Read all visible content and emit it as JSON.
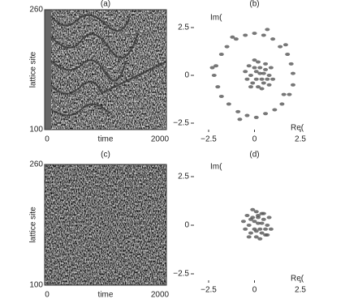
{
  "chart_data": [
    {
      "type": "heatmap",
      "title": "(a)",
      "xlabel": "time",
      "ylabel": "lattice site",
      "xlim": [
        0,
        2000
      ],
      "ylim": [
        100,
        260
      ],
      "xticks": [
        0,
        2000
      ],
      "yticks": [
        100,
        260
      ]
    },
    {
      "type": "scatter",
      "title": "(b)",
      "xlabel": "Re(",
      "ylabel": "Im(",
      "color": "#555",
      "xlim": [
        -2.5,
        2.5
      ],
      "ylim": [
        -2.5,
        2.5
      ],
      "xticks": [
        {
          "value": -2.5,
          "label": "−2.5"
        },
        0,
        2.5
      ],
      "yticks": [
        2.5,
        0,
        {
          "value": -2.5,
          "label": "−2.5"
        }
      ],
      "x": [
        2.1,
        2.0,
        1.8,
        1.4,
        1.0,
        0.5,
        0.0,
        -0.5,
        -1.0,
        -1.5,
        -1.8,
        -2.1,
        -2.2,
        -2.0,
        -1.8,
        -1.4,
        -0.9,
        -0.4,
        0.1,
        0.6,
        1.1,
        1.5,
        1.9,
        2.1,
        0.7,
        -1.2,
        1.6,
        -2.3,
        1.7,
        -0.8,
        0.3,
        0.6,
        0.0,
        -0.2,
        0.5,
        0.8,
        0.2,
        -0.1,
        0.4,
        0.9,
        -0.3,
        0.1,
        0.7,
        0.3,
        -0.4,
        0.6,
        0.2,
        1.0,
        0.0,
        -0.2,
        0.5,
        0.4,
        0.1,
        0.8,
        -0.5
      ],
      "y": [
        0.1,
        0.6,
        1.1,
        1.5,
        1.9,
        2.1,
        2.2,
        2.1,
        1.9,
        1.5,
        1.1,
        0.5,
        0.0,
        -0.6,
        -1.1,
        -1.5,
        -1.9,
        -2.1,
        -2.2,
        -2.0,
        -1.8,
        -1.5,
        -1.0,
        -0.5,
        2.4,
        2.0,
        -1.0,
        0.4,
        1.6,
        -2.3,
        0.1,
        0.3,
        0.4,
        0.0,
        -0.4,
        0.0,
        0.7,
        -0.4,
        -0.7,
        0.4,
        0.5,
        -0.2,
        -0.2,
        0.4,
        -0.2,
        0.6,
        -0.6,
        -0.2,
        0.8,
        -0.6,
        0.1,
        -0.2,
        0.2,
        -0.5,
        0.2
      ]
    },
    {
      "type": "heatmap",
      "title": "(c)",
      "xlabel": "time",
      "ylabel": "lattice site",
      "xlim": [
        0,
        2000
      ],
      "ylim": [
        100,
        260
      ],
      "xticks": [
        0,
        2000
      ],
      "yticks": [
        100,
        260
      ]
    },
    {
      "type": "scatter",
      "title": "(d)",
      "xlabel": "Re(",
      "ylabel": "Im(",
      "color": "#555",
      "xlim": [
        -2.5,
        2.5
      ],
      "ylim": [
        -2.5,
        2.5
      ],
      "xticks": [
        {
          "value": -2.5,
          "label": "−2.5"
        },
        0,
        2.5
      ],
      "yticks": [
        2.5,
        0,
        {
          "value": -2.5,
          "label": "−2.5"
        }
      ],
      "x": [
        0.2,
        0.5,
        -0.1,
        -0.3,
        0.4,
        0.7,
        0.1,
        -0.2,
        0.3,
        0.8,
        -0.4,
        0.0,
        0.6,
        0.2,
        -0.5,
        0.5,
        0.1,
        0.9,
        -0.1,
        -0.3,
        0.4,
        0.3,
        0.0,
        0.7,
        -0.6,
        0.2,
        0.6,
        -0.2,
        0.1,
        0.4
      ],
      "y": [
        0.1,
        0.3,
        0.4,
        0.0,
        -0.4,
        0.0,
        0.7,
        -0.4,
        -0.7,
        0.4,
        0.5,
        -0.2,
        -0.2,
        0.4,
        -0.2,
        0.6,
        -0.6,
        -0.2,
        0.8,
        -0.6,
        0.1,
        -0.2,
        0.2,
        -0.5,
        0.2,
        0.5,
        -0.5,
        0.3,
        -0.3,
        0.6
      ]
    }
  ]
}
